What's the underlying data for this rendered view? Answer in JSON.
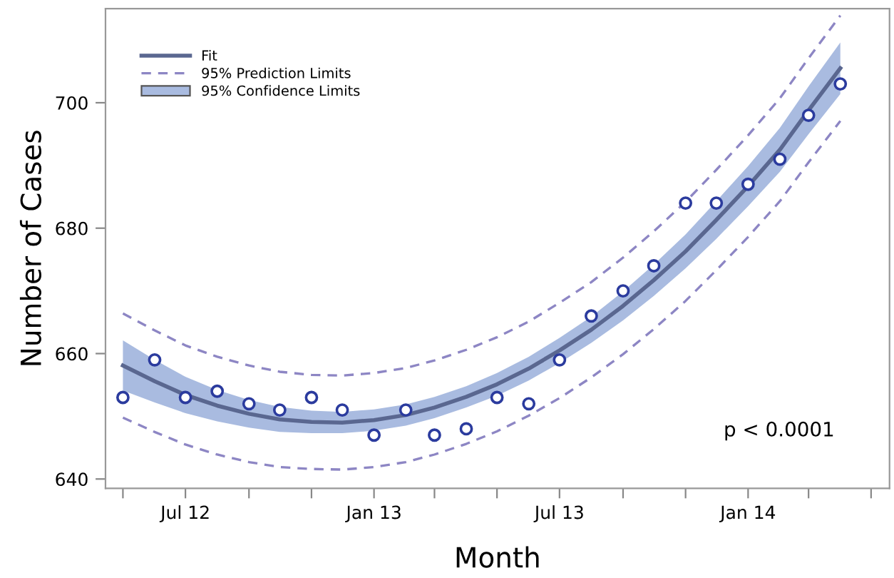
{
  "chart_data": {
    "type": "line",
    "xlabel": "Month",
    "ylabel": "Number of Cases",
    "x": [
      "2012-05",
      "2012-06",
      "2012-07",
      "2012-08",
      "2012-09",
      "2012-10",
      "2012-11",
      "2012-12",
      "2013-01",
      "2013-02",
      "2013-03",
      "2013-04",
      "2013-05",
      "2013-06",
      "2013-07",
      "2013-08",
      "2013-09",
      "2013-10",
      "2013-11",
      "2013-12",
      "2014-01",
      "2014-02",
      "2014-03",
      "2014-04"
    ],
    "series": [
      {
        "name": "Fit",
        "color": "#5a6790",
        "line_style": "solid",
        "values": [
          658.1,
          655.6,
          653.4,
          651.7,
          650.4,
          649.5,
          649.1,
          649.0,
          649.4,
          650.2,
          651.4,
          653.1,
          655.1,
          657.6,
          660.5,
          663.8,
          667.6,
          671.7,
          676.3,
          681.3,
          686.7,
          692.5,
          698.8,
          705.5
        ],
        "lower": [
          654.1,
          652.2,
          650.5,
          649.2,
          648.2,
          647.5,
          647.3,
          647.3,
          647.7,
          648.5,
          649.7,
          651.4,
          653.3,
          655.7,
          658.5,
          661.7,
          665.3,
          669.2,
          673.6,
          678.3,
          683.5,
          689.0,
          695.0,
          701.4
        ],
        "upper": [
          662.1,
          659.0,
          656.3,
          654.2,
          652.6,
          651.5,
          650.9,
          650.7,
          651.1,
          651.9,
          653.1,
          654.8,
          656.9,
          659.5,
          662.5,
          665.9,
          669.9,
          674.2,
          679.0,
          684.3,
          689.9,
          696.0,
          702.6,
          709.6
        ]
      },
      {
        "name": "95% Prediction Limits",
        "type": "line",
        "color": "#8d86c4",
        "line_style": "dashed",
        "values": [
          666.4,
          663.7,
          661.3,
          659.5,
          658.1,
          657.1,
          656.6,
          656.5,
          656.9,
          657.7,
          658.9,
          660.6,
          662.6,
          665.1,
          668.1,
          671.4,
          675.3,
          679.5,
          684.2,
          689.3,
          694.8,
          700.7,
          707.1,
          713.9
        ]
      },
      {
        "color": "#8d86c4",
        "line_style": "dashed",
        "values": [
          649.8,
          647.5,
          645.5,
          643.9,
          642.7,
          641.9,
          641.6,
          641.5,
          641.9,
          642.7,
          643.9,
          645.6,
          647.6,
          650.1,
          652.9,
          656.2,
          659.9,
          663.9,
          668.4,
          673.3,
          678.6,
          684.3,
          690.5,
          697.1
        ]
      },
      {
        "type": "scatter",
        "color": "#2b3b9e",
        "marker": "circle",
        "values": [
          653,
          659,
          653,
          654,
          652,
          651,
          653,
          651,
          647,
          651,
          647,
          648,
          653,
          652,
          659,
          666,
          670,
          674,
          684,
          684,
          687,
          691,
          698,
          703
        ]
      }
    ],
    "xlim": [
      "2012-04-14",
      "2014-05-19"
    ],
    "xticks": [
      {
        "value": "2012-05",
        "label": null
      },
      {
        "value": "2012-07",
        "label": "Jul 12"
      },
      {
        "value": "2012-09",
        "label": null
      },
      {
        "value": "2012-11",
        "label": null
      },
      {
        "value": "2013-01",
        "label": "Jan 13"
      },
      {
        "value": "2013-03",
        "label": null
      },
      {
        "value": "2013-05",
        "label": null
      },
      {
        "value": "2013-07",
        "label": "Jul 13"
      },
      {
        "value": "2013-09",
        "label": null
      },
      {
        "value": "2013-11",
        "label": null
      },
      {
        "value": "2014-01",
        "label": "Jan 14"
      },
      {
        "value": "2014-03",
        "label": null
      },
      {
        "value": "2014-05",
        "label": null
      }
    ],
    "ylim": [
      638.5,
      715
    ],
    "yticks": [
      640,
      660,
      680,
      700
    ],
    "annotations": [
      "95% Confidence Limits",
      "p < 0.0001"
    ],
    "legend": "top left",
    "grid": false
  }
}
